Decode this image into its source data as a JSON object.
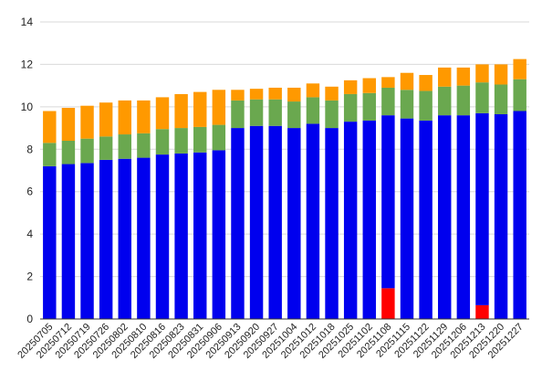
{
  "chart_data": {
    "type": "bar",
    "stacked": true,
    "title": "",
    "xlabel": "",
    "ylabel": "",
    "ylim": [
      0,
      14
    ],
    "yticks": [
      0,
      2,
      4,
      6,
      8,
      10,
      12,
      14
    ],
    "grid": true,
    "legend": "none",
    "categories": [
      "20250705",
      "20250712",
      "20250719",
      "20250726",
      "20250802",
      "20250810",
      "20250816",
      "20250823",
      "20250831",
      "20250906",
      "20250913",
      "20250920",
      "20250927",
      "20251004",
      "20251012",
      "20251018",
      "20251025",
      "20251102",
      "20251108",
      "20251115",
      "20251122",
      "20251129",
      "20251206",
      "20251213",
      "20251220",
      "20251227"
    ],
    "series": [
      {
        "color": "#ff0000",
        "values": [
          0,
          0,
          0,
          0,
          0,
          0,
          0,
          0,
          0,
          0,
          0,
          0,
          0,
          0,
          0,
          0,
          0,
          0,
          1.45,
          0,
          0,
          0,
          0,
          0.65,
          0,
          0
        ]
      },
      {
        "color": "#0000ee",
        "values": [
          7.2,
          7.3,
          7.35,
          7.5,
          7.55,
          7.6,
          7.75,
          7.8,
          7.85,
          7.95,
          9.0,
          9.1,
          9.1,
          9.0,
          9.2,
          9.0,
          9.3,
          9.35,
          8.15,
          9.45,
          9.35,
          9.6,
          9.6,
          9.05,
          9.65,
          9.8
        ]
      },
      {
        "color": "#6aa84f",
        "values": [
          1.1,
          1.1,
          1.15,
          1.1,
          1.15,
          1.15,
          1.2,
          1.2,
          1.2,
          1.2,
          1.3,
          1.25,
          1.25,
          1.25,
          1.25,
          1.3,
          1.3,
          1.3,
          1.3,
          1.35,
          1.4,
          1.35,
          1.4,
          1.45,
          1.4,
          1.5
        ]
      },
      {
        "color": "#ff9900",
        "values": [
          1.5,
          1.55,
          1.55,
          1.6,
          1.6,
          1.55,
          1.5,
          1.6,
          1.65,
          1.65,
          0.5,
          0.5,
          0.55,
          0.65,
          0.65,
          0.65,
          0.65,
          0.7,
          0.5,
          0.8,
          0.75,
          0.9,
          0.85,
          0.85,
          0.95,
          0.95
        ]
      }
    ]
  }
}
